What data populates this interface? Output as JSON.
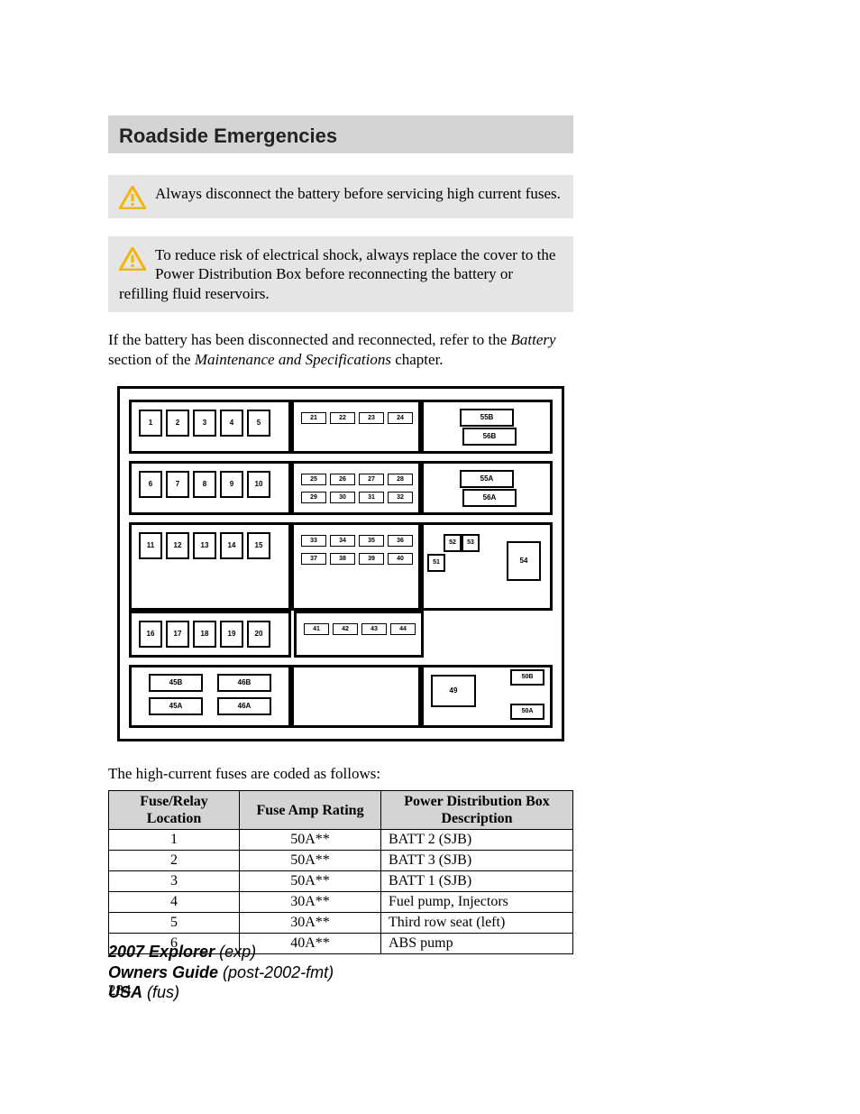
{
  "header": {
    "title": "Roadside Emergencies"
  },
  "warnings": [
    "Always disconnect the battery before servicing high current fuses.",
    "To reduce risk of electrical shock, always replace the cover to the Power Distribution Box before reconnecting the battery or refilling fluid reservoirs."
  ],
  "body_para": {
    "pre": "If the battery has been disconnected and reconnected, refer to the ",
    "ital1": "Battery",
    "mid": " section of the ",
    "ital2": "Maintenance and Specifications",
    "post": " chapter."
  },
  "diagram": {
    "big_fuses_row1": [
      "1",
      "2",
      "3",
      "4",
      "5"
    ],
    "big_fuses_row2": [
      "6",
      "7",
      "8",
      "9",
      "10"
    ],
    "big_fuses_row3": [
      "11",
      "12",
      "13",
      "14",
      "15"
    ],
    "big_fuses_row4": [
      "16",
      "17",
      "18",
      "19",
      "20"
    ],
    "mini_rows": [
      [
        "21",
        "22",
        "23",
        "24"
      ],
      [
        "25",
        "26",
        "27",
        "28"
      ],
      [
        "29",
        "30",
        "31",
        "32"
      ],
      [
        "33",
        "34",
        "35",
        "36"
      ],
      [
        "37",
        "38",
        "39",
        "40"
      ],
      [
        "41",
        "42",
        "43",
        "44"
      ]
    ],
    "right_top": [
      "55B",
      "56B",
      "55A",
      "56A"
    ],
    "right_mid_small": [
      "51",
      "52",
      "53"
    ],
    "right_mid_big": "54",
    "bottom_left": [
      "45B",
      "46B",
      "45A",
      "46A"
    ],
    "bottom_right_big": "49",
    "bottom_right_small": [
      "50B",
      "50A"
    ]
  },
  "table": {
    "caption": "The high-current fuses are coded as follows:",
    "headers": [
      "Fuse/Relay Location",
      "Fuse Amp Rating",
      "Power Distribution Box Description"
    ],
    "rows": [
      [
        "1",
        "50A**",
        "BATT 2 (SJB)"
      ],
      [
        "2",
        "50A**",
        "BATT 3 (SJB)"
      ],
      [
        "3",
        "50A**",
        "BATT 1 (SJB)"
      ],
      [
        "4",
        "30A**",
        "Fuel pump, Injectors"
      ],
      [
        "5",
        "30A**",
        "Third row seat (left)"
      ],
      [
        "6",
        "40A**",
        "ABS pump"
      ]
    ]
  },
  "page_number": "284",
  "footer": {
    "l1a": "2007 Explorer",
    "l1b": "(exp)",
    "l2a": "Owners Guide",
    "l2b": "(post-2002-fmt)",
    "l3a": "USA",
    "l3b": "(fus)"
  },
  "colors": {
    "header_bg": "#d4d4d4",
    "warn_bg": "#e5e5e5",
    "warn_icon": "#f7b500"
  }
}
